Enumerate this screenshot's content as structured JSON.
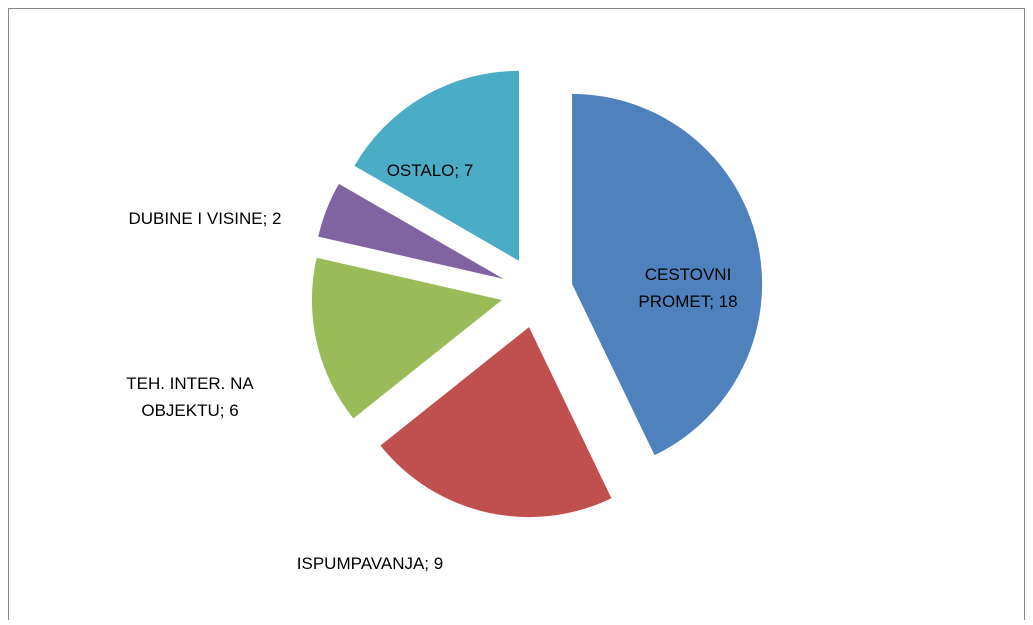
{
  "chart_data": {
    "type": "pie",
    "values": [
      18,
      9,
      6,
      2,
      7
    ],
    "value_labels": [
      "CESTOVNI PROMET; 18",
      "ISPUMPAVANJA; 9",
      "TEH. INTER. NA OBJEKTU; 6",
      "DUBINE I VISINE; 2",
      "OSTALO; 7"
    ],
    "colors": [
      "#4f81bd",
      "#c0504d",
      "#9bbb59",
      "#8064a2",
      "#4bacc6"
    ]
  }
}
